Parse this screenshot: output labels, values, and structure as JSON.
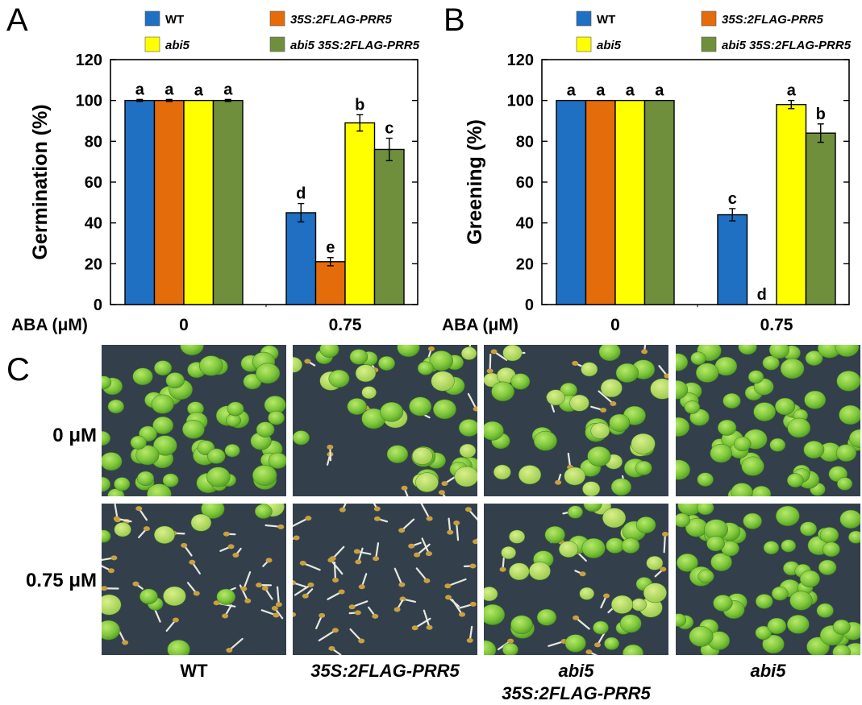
{
  "colors": {
    "wt": "#1f6fc2",
    "prr5": "#e46c0a",
    "abi5": "#ffff00",
    "abi5_prr5": "#6f8f3d"
  },
  "legend": [
    {
      "label": "WT",
      "italic": false,
      "color_key": "wt"
    },
    {
      "label": "35S:2FLAG-PRR5",
      "italic": true,
      "color_key": "prr5"
    },
    {
      "label": "abi5",
      "italic": true,
      "color_key": "abi5"
    },
    {
      "label": "abi5 35S:2FLAG-PRR5",
      "italic": true,
      "color_key": "abi5_prr5"
    }
  ],
  "chart_data": [
    {
      "panel": "A",
      "type": "bar",
      "ylabel": "Germination (%)",
      "xlabel": "ABA (μM)",
      "categories": [
        "0",
        "0.75"
      ],
      "ylim": [
        0,
        120
      ],
      "yticks": [
        0,
        20,
        40,
        60,
        80,
        100,
        120
      ],
      "series": [
        {
          "name": "WT",
          "values": [
            100,
            45
          ],
          "errors": [
            0.5,
            4.5
          ],
          "letters": [
            "a",
            "d"
          ]
        },
        {
          "name": "35S:2FLAG-PRR5",
          "values": [
            100,
            21
          ],
          "errors": [
            0.5,
            2
          ],
          "letters": [
            "a",
            "e"
          ]
        },
        {
          "name": "abi5",
          "values": [
            100,
            89
          ],
          "errors": [
            0,
            4
          ],
          "letters": [
            "a",
            "b"
          ]
        },
        {
          "name": "abi5 35S:2FLAG-PRR5",
          "values": [
            100,
            76
          ],
          "errors": [
            0.5,
            5.5
          ],
          "letters": [
            "a",
            "c"
          ]
        }
      ]
    },
    {
      "panel": "B",
      "type": "bar",
      "ylabel": "Greening (%)",
      "xlabel": "ABA (μM)",
      "categories": [
        "0",
        "0.75"
      ],
      "ylim": [
        0,
        120
      ],
      "yticks": [
        0,
        20,
        40,
        60,
        80,
        100,
        120
      ],
      "series": [
        {
          "name": "WT",
          "values": [
            100,
            44
          ],
          "errors": [
            0,
            3
          ],
          "letters": [
            "a",
            "c"
          ]
        },
        {
          "name": "35S:2FLAG-PRR5",
          "values": [
            100,
            0
          ],
          "errors": [
            0,
            0
          ],
          "letters": [
            "a",
            "d"
          ]
        },
        {
          "name": "abi5",
          "values": [
            100,
            98
          ],
          "errors": [
            0,
            2
          ],
          "letters": [
            "a",
            "a"
          ]
        },
        {
          "name": "abi5 35S:2FLAG-PRR5",
          "values": [
            100,
            84
          ],
          "errors": [
            0,
            4.5
          ],
          "letters": [
            "a",
            "b"
          ]
        }
      ]
    }
  ],
  "panel_c": {
    "letter": "C",
    "row_labels": [
      "0 μM",
      "0.75 μM"
    ],
    "column_labels": [
      {
        "line1": "WT",
        "line2": "",
        "italic": false
      },
      {
        "line1": "35S:2FLAG-PRR5",
        "line2": "",
        "italic": true
      },
      {
        "line1": "abi5",
        "line2": "35S:2FLAG-PRR5",
        "italic": true
      },
      {
        "line1": "abi5",
        "line2": "",
        "italic": true
      }
    ],
    "photo_density": [
      [
        "green",
        "mixed",
        "mixed",
        "green"
      ],
      [
        "sparse",
        "seeds",
        "mixed",
        "green"
      ]
    ]
  }
}
